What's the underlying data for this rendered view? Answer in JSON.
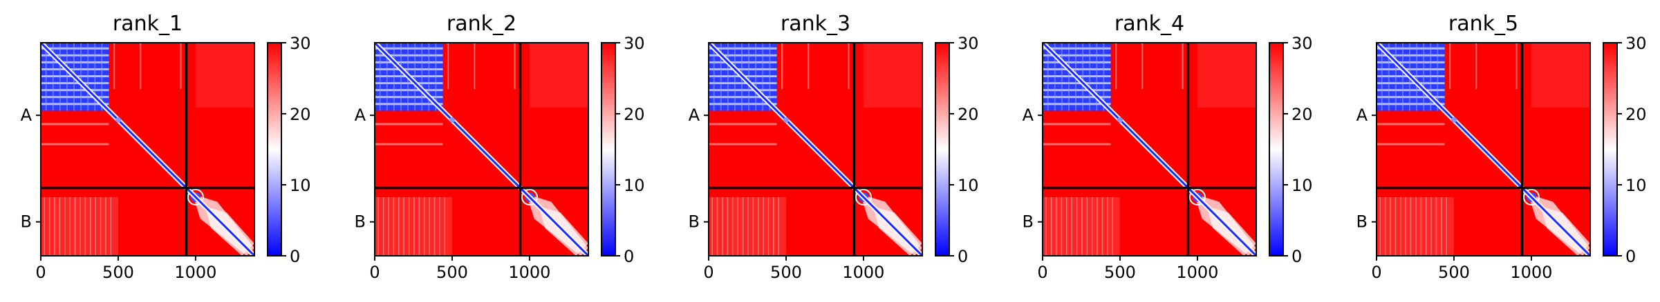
{
  "chart_data": {
    "type": "heatmap",
    "panel_titles": [
      "rank_1",
      "rank_2",
      "rank_3",
      "rank_4",
      "rank_5"
    ],
    "x_ticks": [
      0,
      500,
      1000
    ],
    "y_tick_labels": [
      "A",
      "B"
    ],
    "xlim": [
      0,
      1380
    ],
    "ylim": [
      0,
      1380
    ],
    "chain_boundary": 940,
    "chain_a_length": 940,
    "chain_b_length": 440,
    "low_value_block": [
      0,
      440
    ],
    "colorbar": {
      "min": 0,
      "max": 30,
      "ticks": [
        0,
        10,
        20,
        30
      ],
      "colors": [
        "#0000ff",
        "#ffffff",
        "#ff0000"
      ]
    },
    "grid": false
  }
}
